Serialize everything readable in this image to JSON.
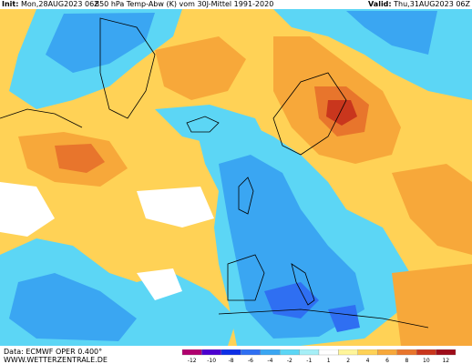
{
  "header": {
    "init_label": "Init:",
    "init_value": "Mon,28AUG2023 06Z",
    "title": "850 hPa Temp-Abw (K) vom 30J-Mittel 1991-2020",
    "valid_label": "Valid:",
    "valid_value": "Thu,31AUG2023 06Z"
  },
  "footer": {
    "data_source": "Data: ECMWF OPER 0.400°",
    "site": "WWW.WETTERZENTRALE.DE"
  },
  "legend": {
    "ticks": [
      "-12",
      "-10",
      "-8",
      "-6",
      "-4",
      "-2",
      "-1",
      "1",
      "2",
      "4",
      "6",
      "8",
      "10",
      "12"
    ],
    "colors": [
      "#b0006e",
      "#4b00d0",
      "#0d2fe6",
      "#2f6ff2",
      "#3aa6f2",
      "#5cd6f5",
      "#a6eff7",
      "#ffffff",
      "#fff59a",
      "#ffd256",
      "#f7a83a",
      "#e8752c",
      "#c9361d",
      "#9e0c19"
    ]
  },
  "map": {
    "region": "Europe / North Atlantic",
    "field": "850 hPa temperature anomaly",
    "colors": {
      "ocean_cold_blue": "#3aa6f2",
      "light_blue": "#5cd6f5",
      "pale_cyan": "#a6eff7",
      "neutral": "#ffffff",
      "pale_yellow": "#fff59a",
      "yellow": "#ffd256",
      "orange": "#f7a83a",
      "dark_orange": "#e8752c",
      "red": "#c9361d",
      "deep_blue": "#2f6ff2"
    }
  }
}
